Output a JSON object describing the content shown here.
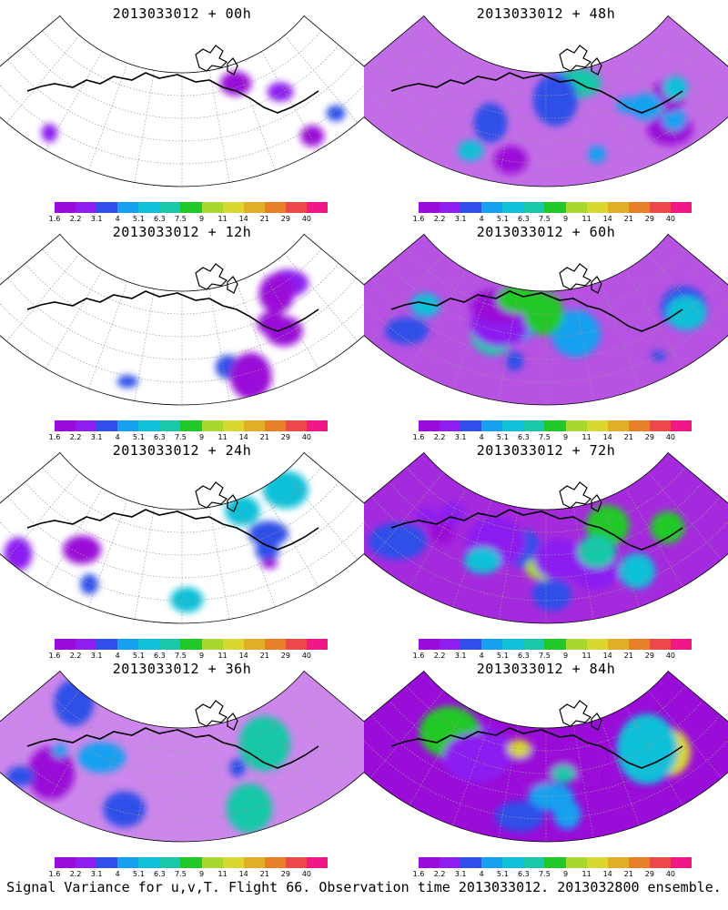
{
  "footer": {
    "caption": "Signal Variance for u,v,T. Flight 66. Observation time 2013033012. 2013032800 ensemble."
  },
  "colorbar": {
    "ticks": [
      "1.6",
      "2.2",
      "3.1",
      "4",
      "5.1",
      "6.3",
      "7.5",
      "9",
      "11",
      "14",
      "21",
      "29",
      "40"
    ],
    "colors": [
      "#9a0cd8",
      "#8c1ef0",
      "#2f4fe8",
      "#18a0f0",
      "#10c0d8",
      "#18c8a8",
      "#20c828",
      "#a8d830",
      "#d8d830",
      "#e0b028",
      "#e88028",
      "#f04848",
      "#f01888"
    ]
  },
  "panels": [
    {
      "title": "2013033012 + 00h",
      "level": 0.08
    },
    {
      "title": "2013033012 + 48h",
      "level": 0.55
    },
    {
      "title": "2013033012 + 12h",
      "level": 0.2
    },
    {
      "title": "2013033012 + 60h",
      "level": 0.65
    },
    {
      "title": "2013033012 + 24h",
      "level": 0.33
    },
    {
      "title": "2013033012 + 72h",
      "level": 0.8
    },
    {
      "title": "2013033012 + 36h",
      "level": 0.45
    },
    {
      "title": "2013033012 + 84h",
      "level": 0.95
    }
  ]
}
